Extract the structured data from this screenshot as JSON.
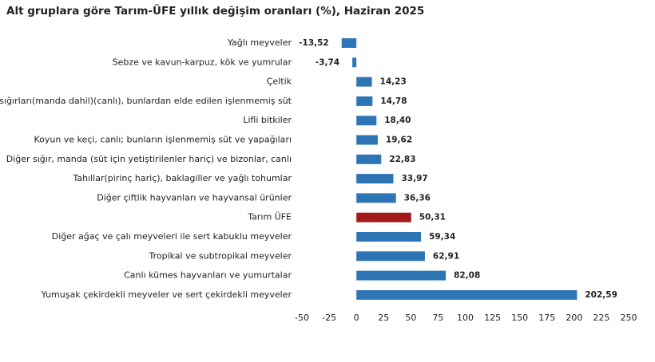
{
  "chart_data": {
    "type": "hbar",
    "title": "Alt gruplara göre Tarım-ÜFE yıllık değişim oranları (%), Haziran 2025",
    "categories": [
      "Yağlı meyveler",
      "Sebze ve kavun-karpuz, kök ve yumrular",
      "Çeltik",
      "Süt sığırları(manda dahil)(canlı), bunlardan elde edilen işlenmemiş süt",
      "Lifli bitkiler",
      "Koyun ve keçi, canlı; bunların işlenmemiş süt ve yapağıları",
      "Diğer sığır, manda (süt için yetiştirilenler hariç) ve bizonlar, canlı",
      "Tahıllar(pirinç hariç), baklagiller ve yağlı tohumlar",
      "Diğer çiftlik hayvanları ve hayvansal ürünler",
      "Tarım ÜFE",
      "Diğer ağaç ve çalı meyveleri ile sert kabuklu meyveler",
      "Tropikal ve subtropikal meyveler",
      "Canlı kümes hayvanları ve yumurtalar",
      "Yumuşak çekirdekli meyveler ve sert çekirdekli meyveler"
    ],
    "values": [
      -13.52,
      -3.74,
      14.23,
      14.78,
      18.4,
      19.62,
      22.83,
      33.97,
      36.36,
      50.31,
      59.34,
      62.91,
      82.08,
      202.59
    ],
    "value_labels": [
      "-13,52",
      "-3,74",
      "14,23",
      "14,78",
      "18,40",
      "19,62",
      "22,83",
      "33,97",
      "36,36",
      "50,31",
      "59,34",
      "62,91",
      "82,08",
      "202,59"
    ],
    "colors": [
      "#2e75b6",
      "#2e75b6",
      "#2e75b6",
      "#2e75b6",
      "#2e75b6",
      "#2e75b6",
      "#2e75b6",
      "#2e75b6",
      "#2e75b6",
      "#a5191b",
      "#2e75b6",
      "#2e75b6",
      "#2e75b6",
      "#2e75b6"
    ],
    "xlim": [
      -50,
      250
    ],
    "xticks": [
      -50,
      -25,
      0,
      25,
      50,
      75,
      100,
      125,
      150,
      175,
      200,
      225,
      250
    ]
  }
}
